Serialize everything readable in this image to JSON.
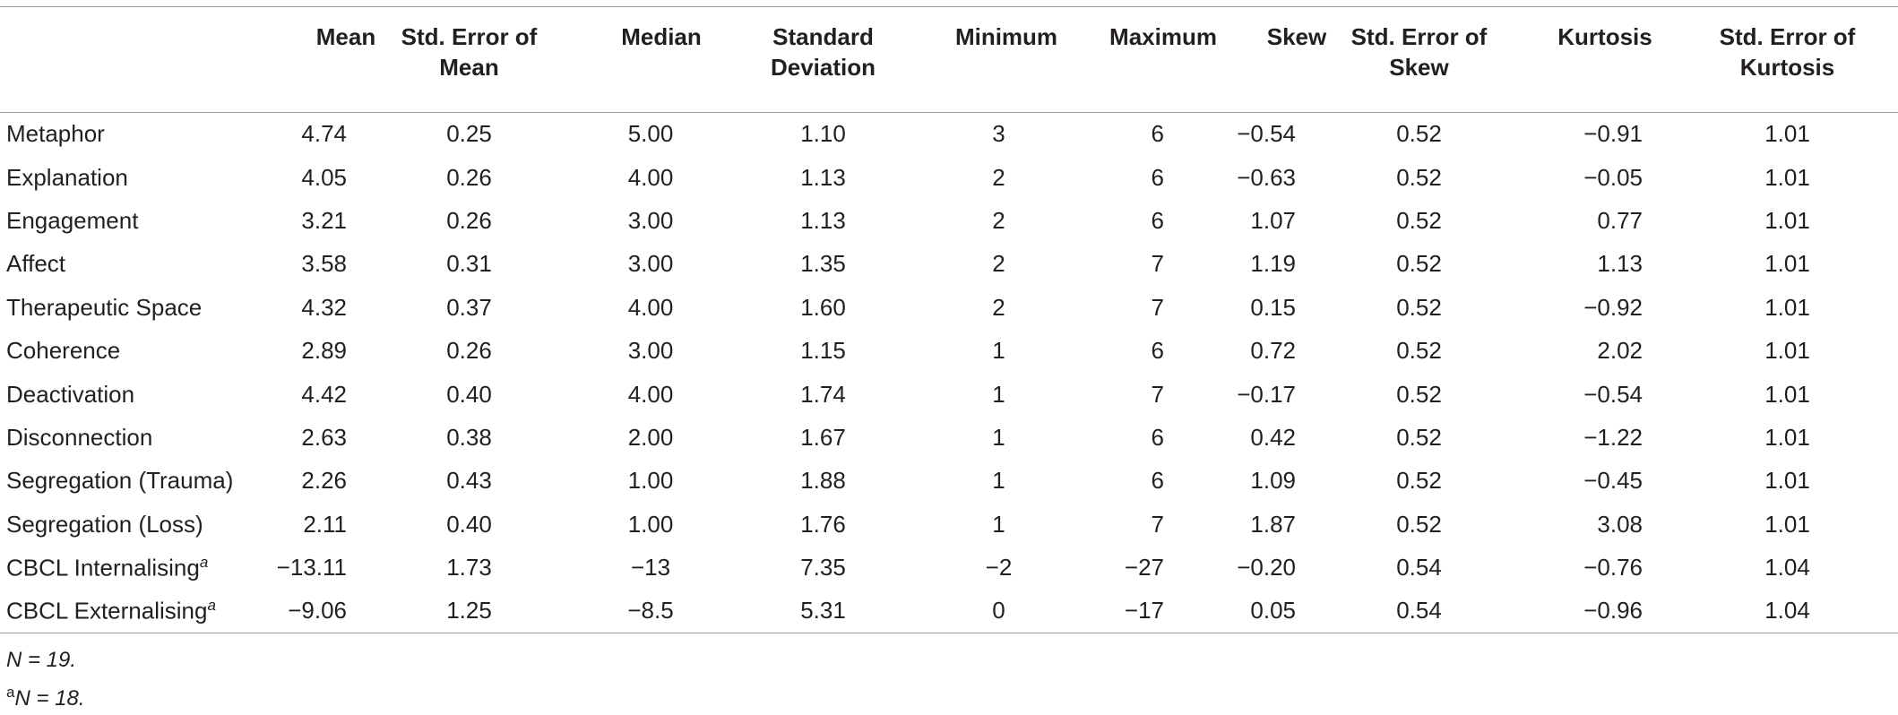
{
  "table": {
    "headers": [
      "Mean",
      "Std. Error of Mean",
      "Median",
      "Standard Deviation",
      "Minimum",
      "Maximum",
      "Skew",
      "Std. Error of Skew",
      "Kurtosis",
      "Std. Error of Kurtosis"
    ],
    "rows": [
      {
        "label": "Metaphor",
        "values": [
          "4.74",
          "0.25",
          "5.00",
          "1.10",
          "3",
          "6",
          "−0.54",
          "0.52",
          "−0.91",
          "1.01"
        ]
      },
      {
        "label": "Explanation",
        "values": [
          "4.05",
          "0.26",
          "4.00",
          "1.13",
          "2",
          "6",
          "−0.63",
          "0.52",
          "−0.05",
          "1.01"
        ]
      },
      {
        "label": "Engagement",
        "values": [
          "3.21",
          "0.26",
          "3.00",
          "1.13",
          "2",
          "6",
          "1.07",
          "0.52",
          "0.77",
          "1.01"
        ]
      },
      {
        "label": "Affect",
        "values": [
          "3.58",
          "0.31",
          "3.00",
          "1.35",
          "2",
          "7",
          "1.19",
          "0.52",
          "1.13",
          "1.01"
        ]
      },
      {
        "label": "Therapeutic Space",
        "values": [
          "4.32",
          "0.37",
          "4.00",
          "1.60",
          "2",
          "7",
          "0.15",
          "0.52",
          "−0.92",
          "1.01"
        ]
      },
      {
        "label": "Coherence",
        "values": [
          "2.89",
          "0.26",
          "3.00",
          "1.15",
          "1",
          "6",
          "0.72",
          "0.52",
          "2.02",
          "1.01"
        ]
      },
      {
        "label": "Deactivation",
        "values": [
          "4.42",
          "0.40",
          "4.00",
          "1.74",
          "1",
          "7",
          "−0.17",
          "0.52",
          "−0.54",
          "1.01"
        ]
      },
      {
        "label": "Disconnection",
        "values": [
          "2.63",
          "0.38",
          "2.00",
          "1.67",
          "1",
          "6",
          "0.42",
          "0.52",
          "−1.22",
          "1.01"
        ]
      },
      {
        "label": "Segregation (Trauma)",
        "values": [
          "2.26",
          "0.43",
          "1.00",
          "1.88",
          "1",
          "6",
          "1.09",
          "0.52",
          "−0.45",
          "1.01"
        ]
      },
      {
        "label": "Segregation (Loss)",
        "values": [
          "2.11",
          "0.40",
          "1.00",
          "1.76",
          "1",
          "7",
          "1.87",
          "0.52",
          "3.08",
          "1.01"
        ]
      },
      {
        "label": "CBCL Internalising",
        "label_sup": "a",
        "values": [
          "−13.11",
          "1.73",
          "−13",
          "7.35",
          "−2",
          "−27",
          "−0.20",
          "0.54",
          "−0.76",
          "1.04"
        ]
      },
      {
        "label": "CBCL Externalising",
        "label_sup": "a",
        "values": [
          "−9.06",
          "1.25",
          "−8.5",
          "5.31",
          "0",
          "−17",
          "0.05",
          "0.54",
          "−0.96",
          "1.04"
        ]
      }
    ],
    "notes": [
      {
        "text": "N = 19."
      },
      {
        "sup": "a",
        "text": "N = 18."
      }
    ]
  }
}
